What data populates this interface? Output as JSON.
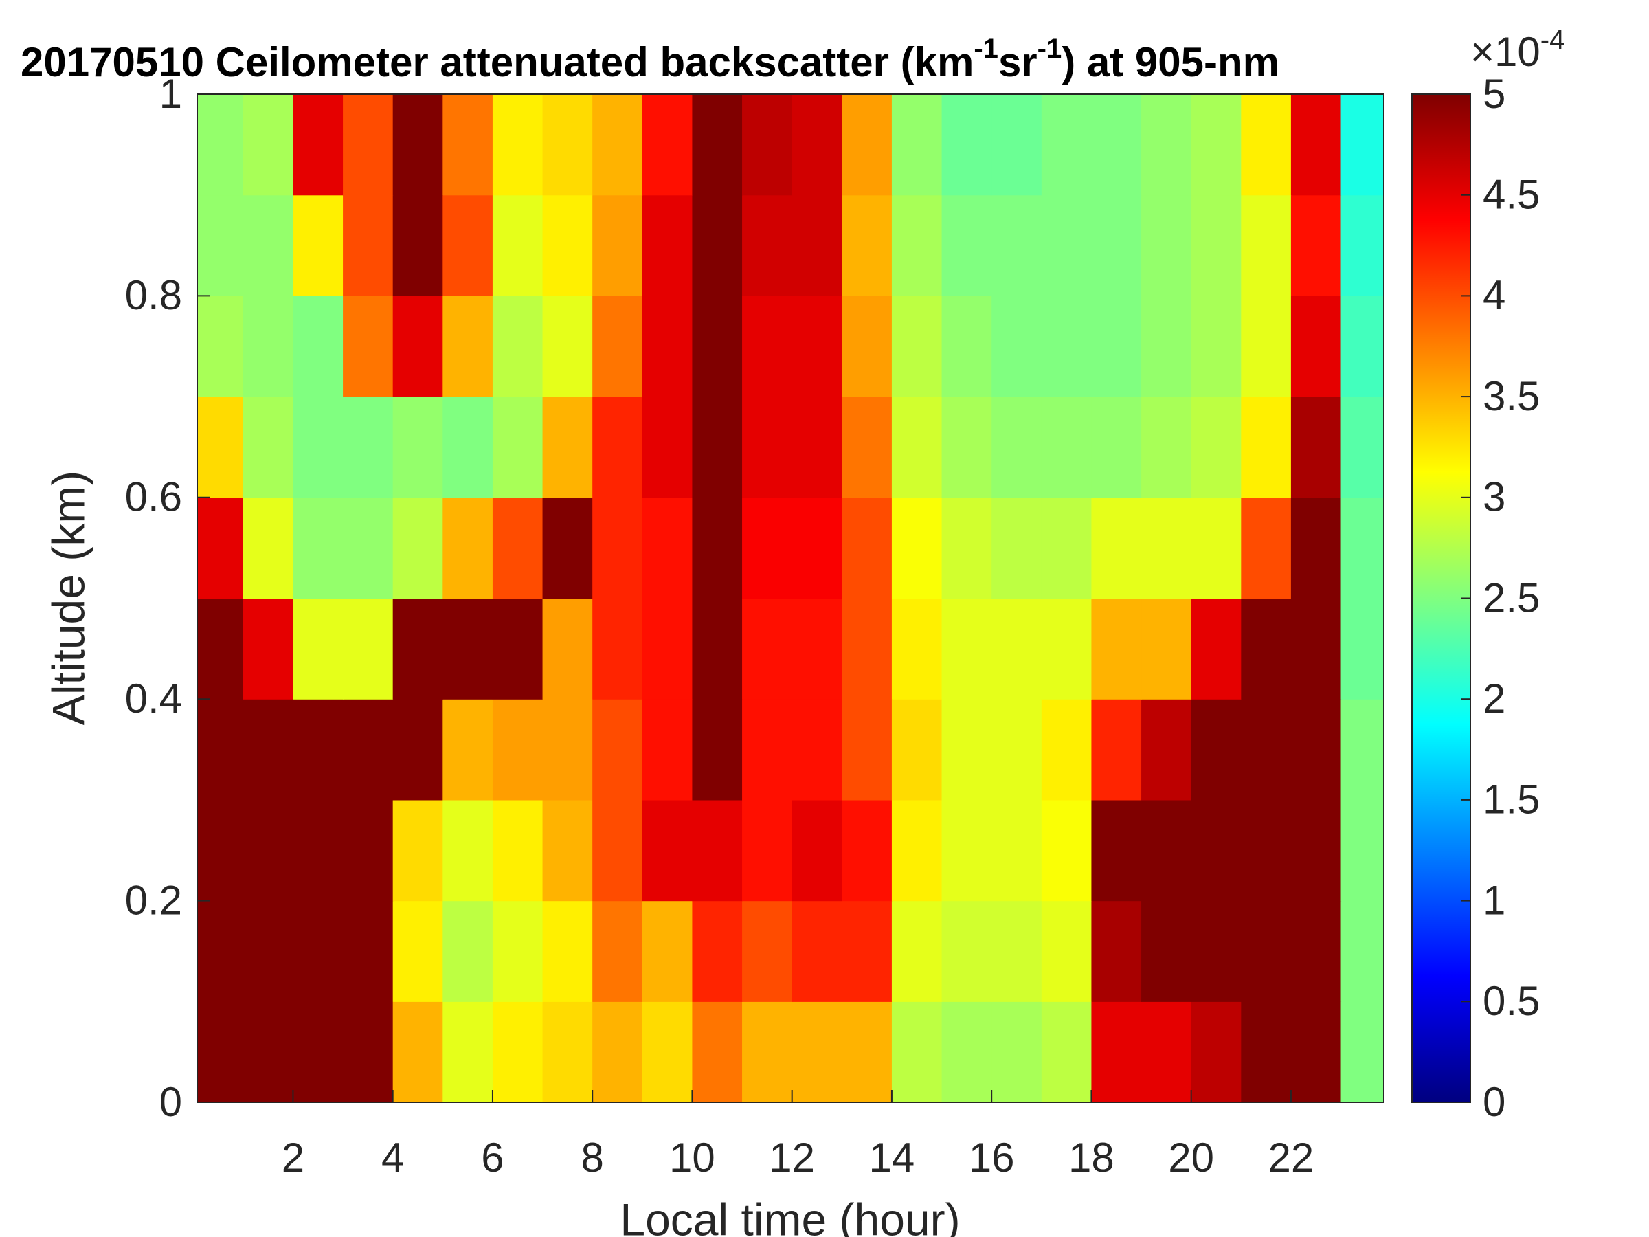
{
  "chart_data": {
    "type": "heatmap",
    "title_parts": [
      "20170510  Ceilometer attenuated backscatter (km",
      "-1",
      "sr",
      "-1",
      ") at 905-nm"
    ],
    "x_label": "Local time (hour)",
    "y_label": "Altitude (km)",
    "colormap": "jet",
    "clim": [
      0,
      5
    ],
    "colorbar_ticks": [
      0,
      0.5,
      1,
      1.5,
      2,
      2.5,
      3,
      3.5,
      4,
      4.5,
      5
    ],
    "colorbar_exponent": [
      "×10",
      "-4"
    ],
    "xlim": [
      0.08,
      23.86
    ],
    "xticks": [
      2,
      4,
      6,
      8,
      10,
      12,
      14,
      16,
      18,
      20,
      22
    ],
    "ylim": [
      0,
      1
    ],
    "yticks": [
      0,
      0.2,
      0.4,
      0.6,
      0.8,
      1
    ],
    "x": [
      0.5,
      1.5,
      2.5,
      3.5,
      4.5,
      5.5,
      6.5,
      7.5,
      8.5,
      9.5,
      10.5,
      11.5,
      12.5,
      13.5,
      14.5,
      15.5,
      16.5,
      17.5,
      18.5,
      19.5,
      20.5,
      21.5,
      22.5,
      23.5
    ],
    "y": [
      0.05,
      0.15,
      0.25,
      0.35,
      0.45,
      0.55,
      0.65,
      0.75,
      0.85,
      0.95
    ],
    "z": [
      [
        5,
        5,
        5,
        5,
        3.5,
        3,
        3.2,
        3.3,
        3.5,
        3.3,
        3.8,
        3.5,
        3.5,
        3.5,
        2.8,
        2.7,
        2.7,
        2.8,
        4.5,
        4.5,
        4.7,
        5,
        5,
        2.5
      ],
      [
        5,
        5,
        5,
        5,
        3.2,
        2.8,
        3,
        3.2,
        3.8,
        3.5,
        4.2,
        4,
        4.2,
        4.2,
        3,
        2.9,
        2.9,
        3,
        4.8,
        5,
        5,
        5,
        5,
        2.5
      ],
      [
        5,
        5,
        5,
        5,
        3.3,
        3,
        3.2,
        3.5,
        4,
        4.5,
        4.5,
        4.3,
        4.5,
        4.3,
        3.2,
        3,
        3,
        3.1,
        5,
        5,
        5,
        5,
        5,
        2.5
      ],
      [
        5,
        5,
        5,
        5,
        5,
        3.5,
        3.6,
        3.6,
        4,
        4.3,
        5,
        4.3,
        4.3,
        4,
        3.3,
        3,
        3,
        3.2,
        4.2,
        4.7,
        5,
        5,
        5,
        2.5
      ],
      [
        5,
        4.5,
        3,
        3,
        5,
        5,
        5,
        3.6,
        4.2,
        4.3,
        5,
        4.3,
        4.3,
        4,
        3.2,
        3,
        3,
        3,
        3.5,
        3.5,
        4.5,
        5,
        5,
        2.4
      ],
      [
        4.5,
        3,
        2.6,
        2.6,
        2.8,
        3.5,
        4,
        5,
        4.2,
        4.3,
        5,
        4.4,
        4.4,
        4,
        3.1,
        2.9,
        2.8,
        2.8,
        3,
        3,
        3,
        4,
        5,
        2.4
      ],
      [
        3.3,
        2.7,
        2.5,
        2.5,
        2.6,
        2.5,
        2.7,
        3.5,
        4.2,
        4.5,
        5,
        4.5,
        4.5,
        3.8,
        2.9,
        2.7,
        2.6,
        2.6,
        2.6,
        2.7,
        2.8,
        3.2,
        4.8,
        2.3
      ],
      [
        2.7,
        2.6,
        2.5,
        3.8,
        4.5,
        3.5,
        2.8,
        3,
        3.8,
        4.5,
        5,
        4.5,
        4.5,
        3.6,
        2.8,
        2.6,
        2.5,
        2.5,
        2.5,
        2.6,
        2.7,
        3,
        4.5,
        2.2
      ],
      [
        2.6,
        2.6,
        3.2,
        4,
        5,
        4,
        3,
        3.2,
        3.6,
        4.5,
        5,
        4.6,
        4.6,
        3.5,
        2.7,
        2.5,
        2.5,
        2.5,
        2.5,
        2.6,
        2.7,
        3,
        4.3,
        2.1
      ],
      [
        2.6,
        2.7,
        4.5,
        4,
        5,
        3.8,
        3.2,
        3.3,
        3.5,
        4.3,
        5,
        4.7,
        4.6,
        3.6,
        2.6,
        2.4,
        2.4,
        2.5,
        2.5,
        2.6,
        2.7,
        3.2,
        4.5,
        2
      ]
    ]
  }
}
